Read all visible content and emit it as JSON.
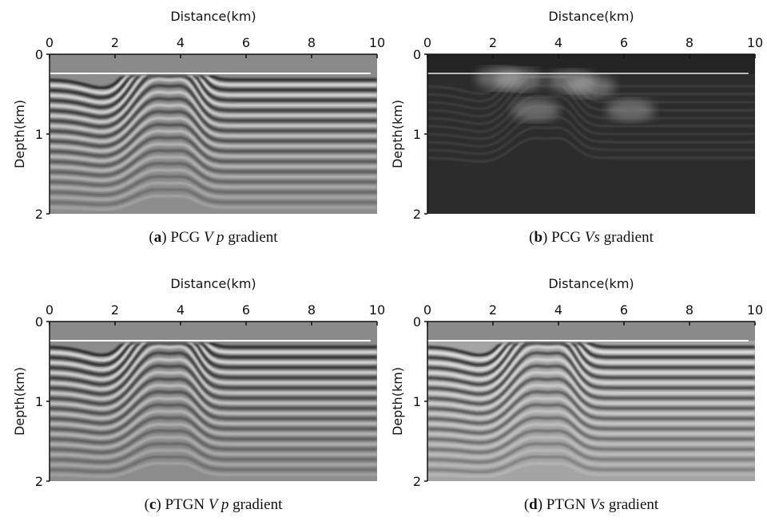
{
  "chart_data": [
    {
      "type": "image",
      "xlabel": "Distance(km)",
      "ylabel": "Depth(km)",
      "xlim": [
        0,
        10
      ],
      "xticks": [
        0,
        2,
        4,
        6,
        8,
        10
      ],
      "ylim": [
        0,
        2
      ],
      "yticks": [
        0,
        1,
        2
      ],
      "y_inverted": true,
      "background": "#8c8c8c",
      "caption": [
        "(",
        "a",
        ") PCG ",
        "V p",
        " gradient"
      ]
    },
    {
      "type": "image",
      "xlabel": "Distance(km)",
      "ylabel": "Depth(km)",
      "xlim": [
        0,
        10
      ],
      "xticks": [
        0,
        2,
        4,
        6,
        8,
        10
      ],
      "ylim": [
        0,
        2
      ],
      "yticks": [
        0,
        1,
        2
      ],
      "y_inverted": true,
      "background": "#2c2c2c",
      "caption": [
        "(",
        "b",
        ") PCG ",
        "Vs",
        " gradient"
      ]
    },
    {
      "type": "image",
      "xlabel": "Distance(km)",
      "ylabel": "Depth(km)",
      "xlim": [
        0,
        10
      ],
      "xticks": [
        0,
        2,
        4,
        6,
        8,
        10
      ],
      "ylim": [
        0,
        2
      ],
      "yticks": [
        0,
        1,
        2
      ],
      "y_inverted": true,
      "background": "#8c8c8c",
      "caption": [
        "(",
        "c",
        ") PTGN ",
        "V p",
        " gradient"
      ]
    },
    {
      "type": "image",
      "xlabel": "Distance(km)",
      "ylabel": "Depth(km)",
      "xlim": [
        0,
        10
      ],
      "xticks": [
        0,
        2,
        4,
        6,
        8,
        10
      ],
      "ylim": [
        0,
        2
      ],
      "yticks": [
        0,
        1,
        2
      ],
      "y_inverted": true,
      "background": "#a4a4a4",
      "caption": [
        "(",
        "d",
        ") PTGN ",
        "Vs",
        " gradient"
      ]
    }
  ]
}
